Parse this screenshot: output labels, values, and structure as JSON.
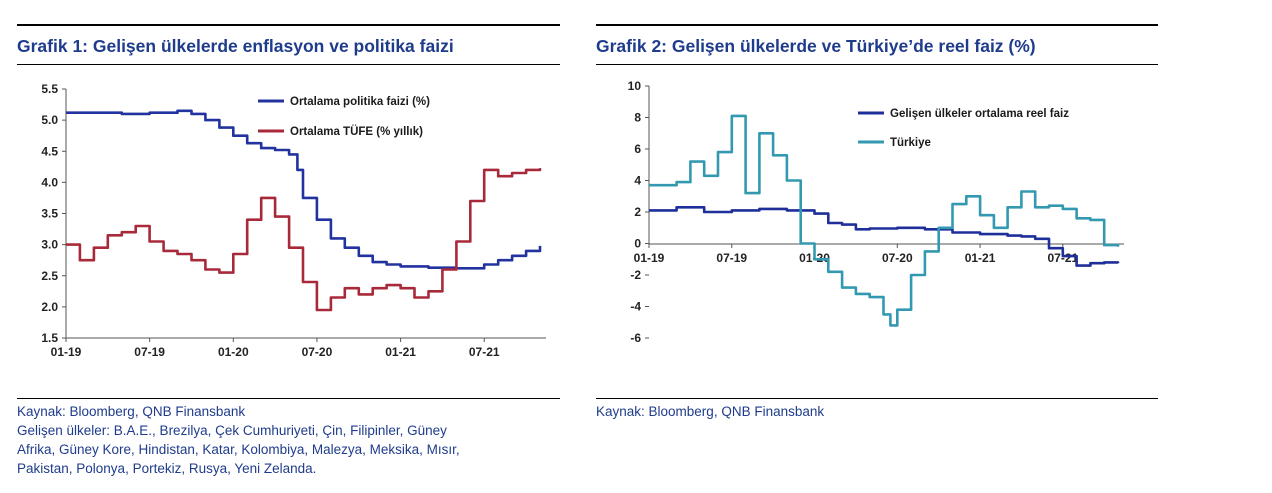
{
  "charts": [
    {
      "title": "Grafik 1: Gelişen ülkelerde enflasyon ve politika faizi",
      "source_lines": [
        "Kaynak: Bloomberg, QNB Finansbank",
        "Gelişen ülkeler: B.A.E., Brezilya, Çek Cumhuriyeti, Çin, Filipinler, Güney",
        "Afrika, Güney Kore, Hindistan, Katar, Kolombiya, Malezya, Meksika, Mısır,",
        "Pakistan, Polonya, Portekiz, Rusya, Yeni Zelanda."
      ]
    },
    {
      "title": "Grafik 2: Gelişen ülkelerde ve Türkiye’de reel faiz (%)",
      "source_lines": [
        "Kaynak: Bloomberg, QNB Finansbank"
      ]
    }
  ],
  "chart_data": [
    {
      "type": "line",
      "x_ticks": [
        "01-19",
        "07-19",
        "01-20",
        "07-20",
        "01-21",
        "07-21"
      ],
      "y_ticks": [
        "5.5",
        "5.0",
        "4.5",
        "4.0",
        "3.5",
        "3.0",
        "2.5",
        "2.0",
        "1.5"
      ],
      "ylim": [
        1.5,
        5.5
      ],
      "xlim": [
        0,
        34
      ],
      "grid": false,
      "legend_position": "top-right",
      "series": [
        {
          "name": "Ortalama politika faizi (%)",
          "color": "#2233a0",
          "points": [
            [
              0,
              5.12
            ],
            [
              2,
              5.12
            ],
            [
              4,
              5.1
            ],
            [
              6,
              5.12
            ],
            [
              8,
              5.15
            ],
            [
              9,
              5.1
            ],
            [
              10,
              5.0
            ],
            [
              11,
              4.88
            ],
            [
              12,
              4.75
            ],
            [
              13,
              4.63
            ],
            [
              14,
              4.55
            ],
            [
              15,
              4.52
            ],
            [
              16,
              4.45
            ],
            [
              16.6,
              4.2
            ],
            [
              17,
              3.75
            ],
            [
              18,
              3.4
            ],
            [
              19,
              3.1
            ],
            [
              20,
              2.95
            ],
            [
              21,
              2.82
            ],
            [
              22,
              2.72
            ],
            [
              23,
              2.68
            ],
            [
              24,
              2.65
            ],
            [
              26,
              2.63
            ],
            [
              28,
              2.62
            ],
            [
              29,
              2.62
            ],
            [
              30,
              2.68
            ],
            [
              31,
              2.75
            ],
            [
              32,
              2.82
            ],
            [
              33,
              2.9
            ],
            [
              34,
              2.98
            ]
          ]
        },
        {
          "name": "Ortalama TÜFE (% yıllık)",
          "color": "#a82a3a",
          "points": [
            [
              0,
              3.0
            ],
            [
              1,
              2.75
            ],
            [
              2,
              2.95
            ],
            [
              3,
              3.15
            ],
            [
              4,
              3.2
            ],
            [
              5,
              3.3
            ],
            [
              6,
              3.05
            ],
            [
              7,
              2.9
            ],
            [
              8,
              2.85
            ],
            [
              9,
              2.75
            ],
            [
              10,
              2.6
            ],
            [
              11,
              2.55
            ],
            [
              12,
              2.85
            ],
            [
              13,
              3.4
            ],
            [
              14,
              3.75
            ],
            [
              15,
              3.45
            ],
            [
              16,
              2.95
            ],
            [
              17,
              2.4
            ],
            [
              18,
              1.95
            ],
            [
              19,
              2.15
            ],
            [
              20,
              2.3
            ],
            [
              21,
              2.2
            ],
            [
              22,
              2.3
            ],
            [
              23,
              2.35
            ],
            [
              24,
              2.3
            ],
            [
              25,
              2.15
            ],
            [
              26,
              2.25
            ],
            [
              27,
              2.6
            ],
            [
              28,
              3.05
            ],
            [
              29,
              3.7
            ],
            [
              30,
              4.2
            ],
            [
              31,
              4.1
            ],
            [
              32,
              4.15
            ],
            [
              33,
              4.2
            ],
            [
              34,
              4.23
            ]
          ]
        }
      ]
    },
    {
      "type": "line",
      "x_ticks": [
        "01-19",
        "07-19",
        "01-20",
        "07-20",
        "01-21",
        "07-21"
      ],
      "y_ticks": [
        "10",
        "8",
        "6",
        "4",
        "2",
        "0",
        "-2",
        "-4",
        "-6"
      ],
      "ylim": [
        -6,
        10
      ],
      "xlim": [
        0,
        34
      ],
      "grid": false,
      "legend_position": "top-right",
      "series": [
        {
          "name": "Gelişen ülkeler ortalama reel faiz",
          "color": "#1f2f9a",
          "points": [
            [
              0,
              2.1
            ],
            [
              2,
              2.3
            ],
            [
              4,
              2.0
            ],
            [
              6,
              2.1
            ],
            [
              8,
              2.2
            ],
            [
              10,
              2.1
            ],
            [
              12,
              1.9
            ],
            [
              13,
              1.3
            ],
            [
              14,
              1.2
            ],
            [
              15,
              0.9
            ],
            [
              16,
              0.95
            ],
            [
              18,
              1.0
            ],
            [
              20,
              0.9
            ],
            [
              22,
              0.7
            ],
            [
              24,
              0.6
            ],
            [
              26,
              0.5
            ],
            [
              27,
              0.45
            ],
            [
              28,
              0.3
            ],
            [
              29,
              -0.3
            ],
            [
              30,
              -0.8
            ],
            [
              31,
              -1.4
            ],
            [
              32,
              -1.25
            ],
            [
              33,
              -1.2
            ],
            [
              34,
              -1.25
            ]
          ]
        },
        {
          "name": "Türkiye",
          "color": "#3399b0",
          "points": [
            [
              0,
              3.7
            ],
            [
              2,
              3.9
            ],
            [
              3,
              5.2
            ],
            [
              4,
              4.3
            ],
            [
              5,
              5.8
            ],
            [
              6,
              8.1
            ],
            [
              7,
              3.2
            ],
            [
              8,
              7.0
            ],
            [
              9,
              5.6
            ],
            [
              10,
              4.0
            ],
            [
              11,
              0.0
            ],
            [
              12,
              -1.0
            ],
            [
              13,
              -1.8
            ],
            [
              14,
              -2.8
            ],
            [
              15,
              -3.2
            ],
            [
              16,
              -3.4
            ],
            [
              17,
              -4.5
            ],
            [
              17.5,
              -5.2
            ],
            [
              18,
              -4.2
            ],
            [
              19,
              -2.0
            ],
            [
              20,
              -0.5
            ],
            [
              21,
              1.0
            ],
            [
              22,
              2.5
            ],
            [
              23,
              3.0
            ],
            [
              24,
              1.8
            ],
            [
              25,
              1.0
            ],
            [
              26,
              2.3
            ],
            [
              27,
              3.3
            ],
            [
              28,
              2.3
            ],
            [
              29,
              2.4
            ],
            [
              30,
              2.2
            ],
            [
              31,
              1.6
            ],
            [
              32,
              1.5
            ],
            [
              33,
              -0.1
            ],
            [
              34,
              -0.2
            ]
          ]
        }
      ]
    }
  ]
}
